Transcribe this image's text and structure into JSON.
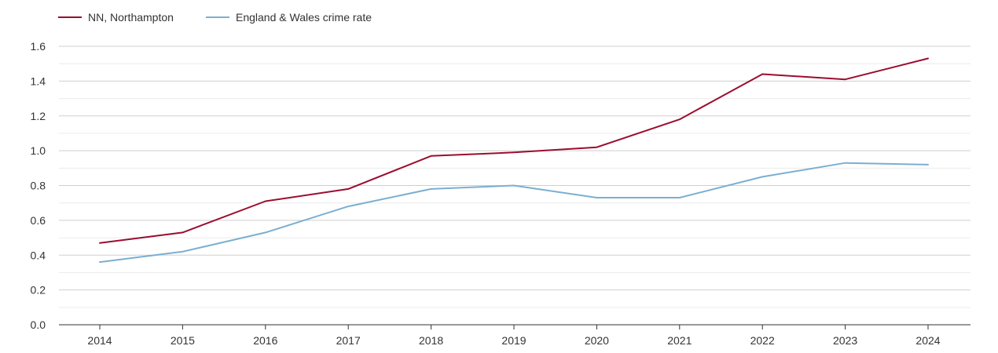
{
  "chart_data": {
    "type": "line",
    "title": "",
    "xlabel": "",
    "ylabel": "",
    "categories": [
      "2014",
      "2015",
      "2016",
      "2017",
      "2018",
      "2019",
      "2020",
      "2021",
      "2022",
      "2023",
      "2024"
    ],
    "ylim": [
      0,
      1.6
    ],
    "yticks": [
      "0.0",
      "0.2",
      "0.4",
      "0.6",
      "0.8",
      "1.0",
      "1.2",
      "1.4",
      "1.6"
    ],
    "grid": true,
    "legend_position": "top-left",
    "series": [
      {
        "name": "NN, Northampton",
        "color": "#9b0d2e",
        "values": [
          0.47,
          0.53,
          0.71,
          0.78,
          0.97,
          0.99,
          1.02,
          1.18,
          1.44,
          1.41,
          1.53
        ]
      },
      {
        "name": "England & Wales crime rate",
        "color": "#7bafd0",
        "values": [
          0.36,
          0.42,
          0.53,
          0.68,
          0.78,
          0.8,
          0.73,
          0.73,
          0.85,
          0.93,
          0.92
        ]
      }
    ]
  }
}
